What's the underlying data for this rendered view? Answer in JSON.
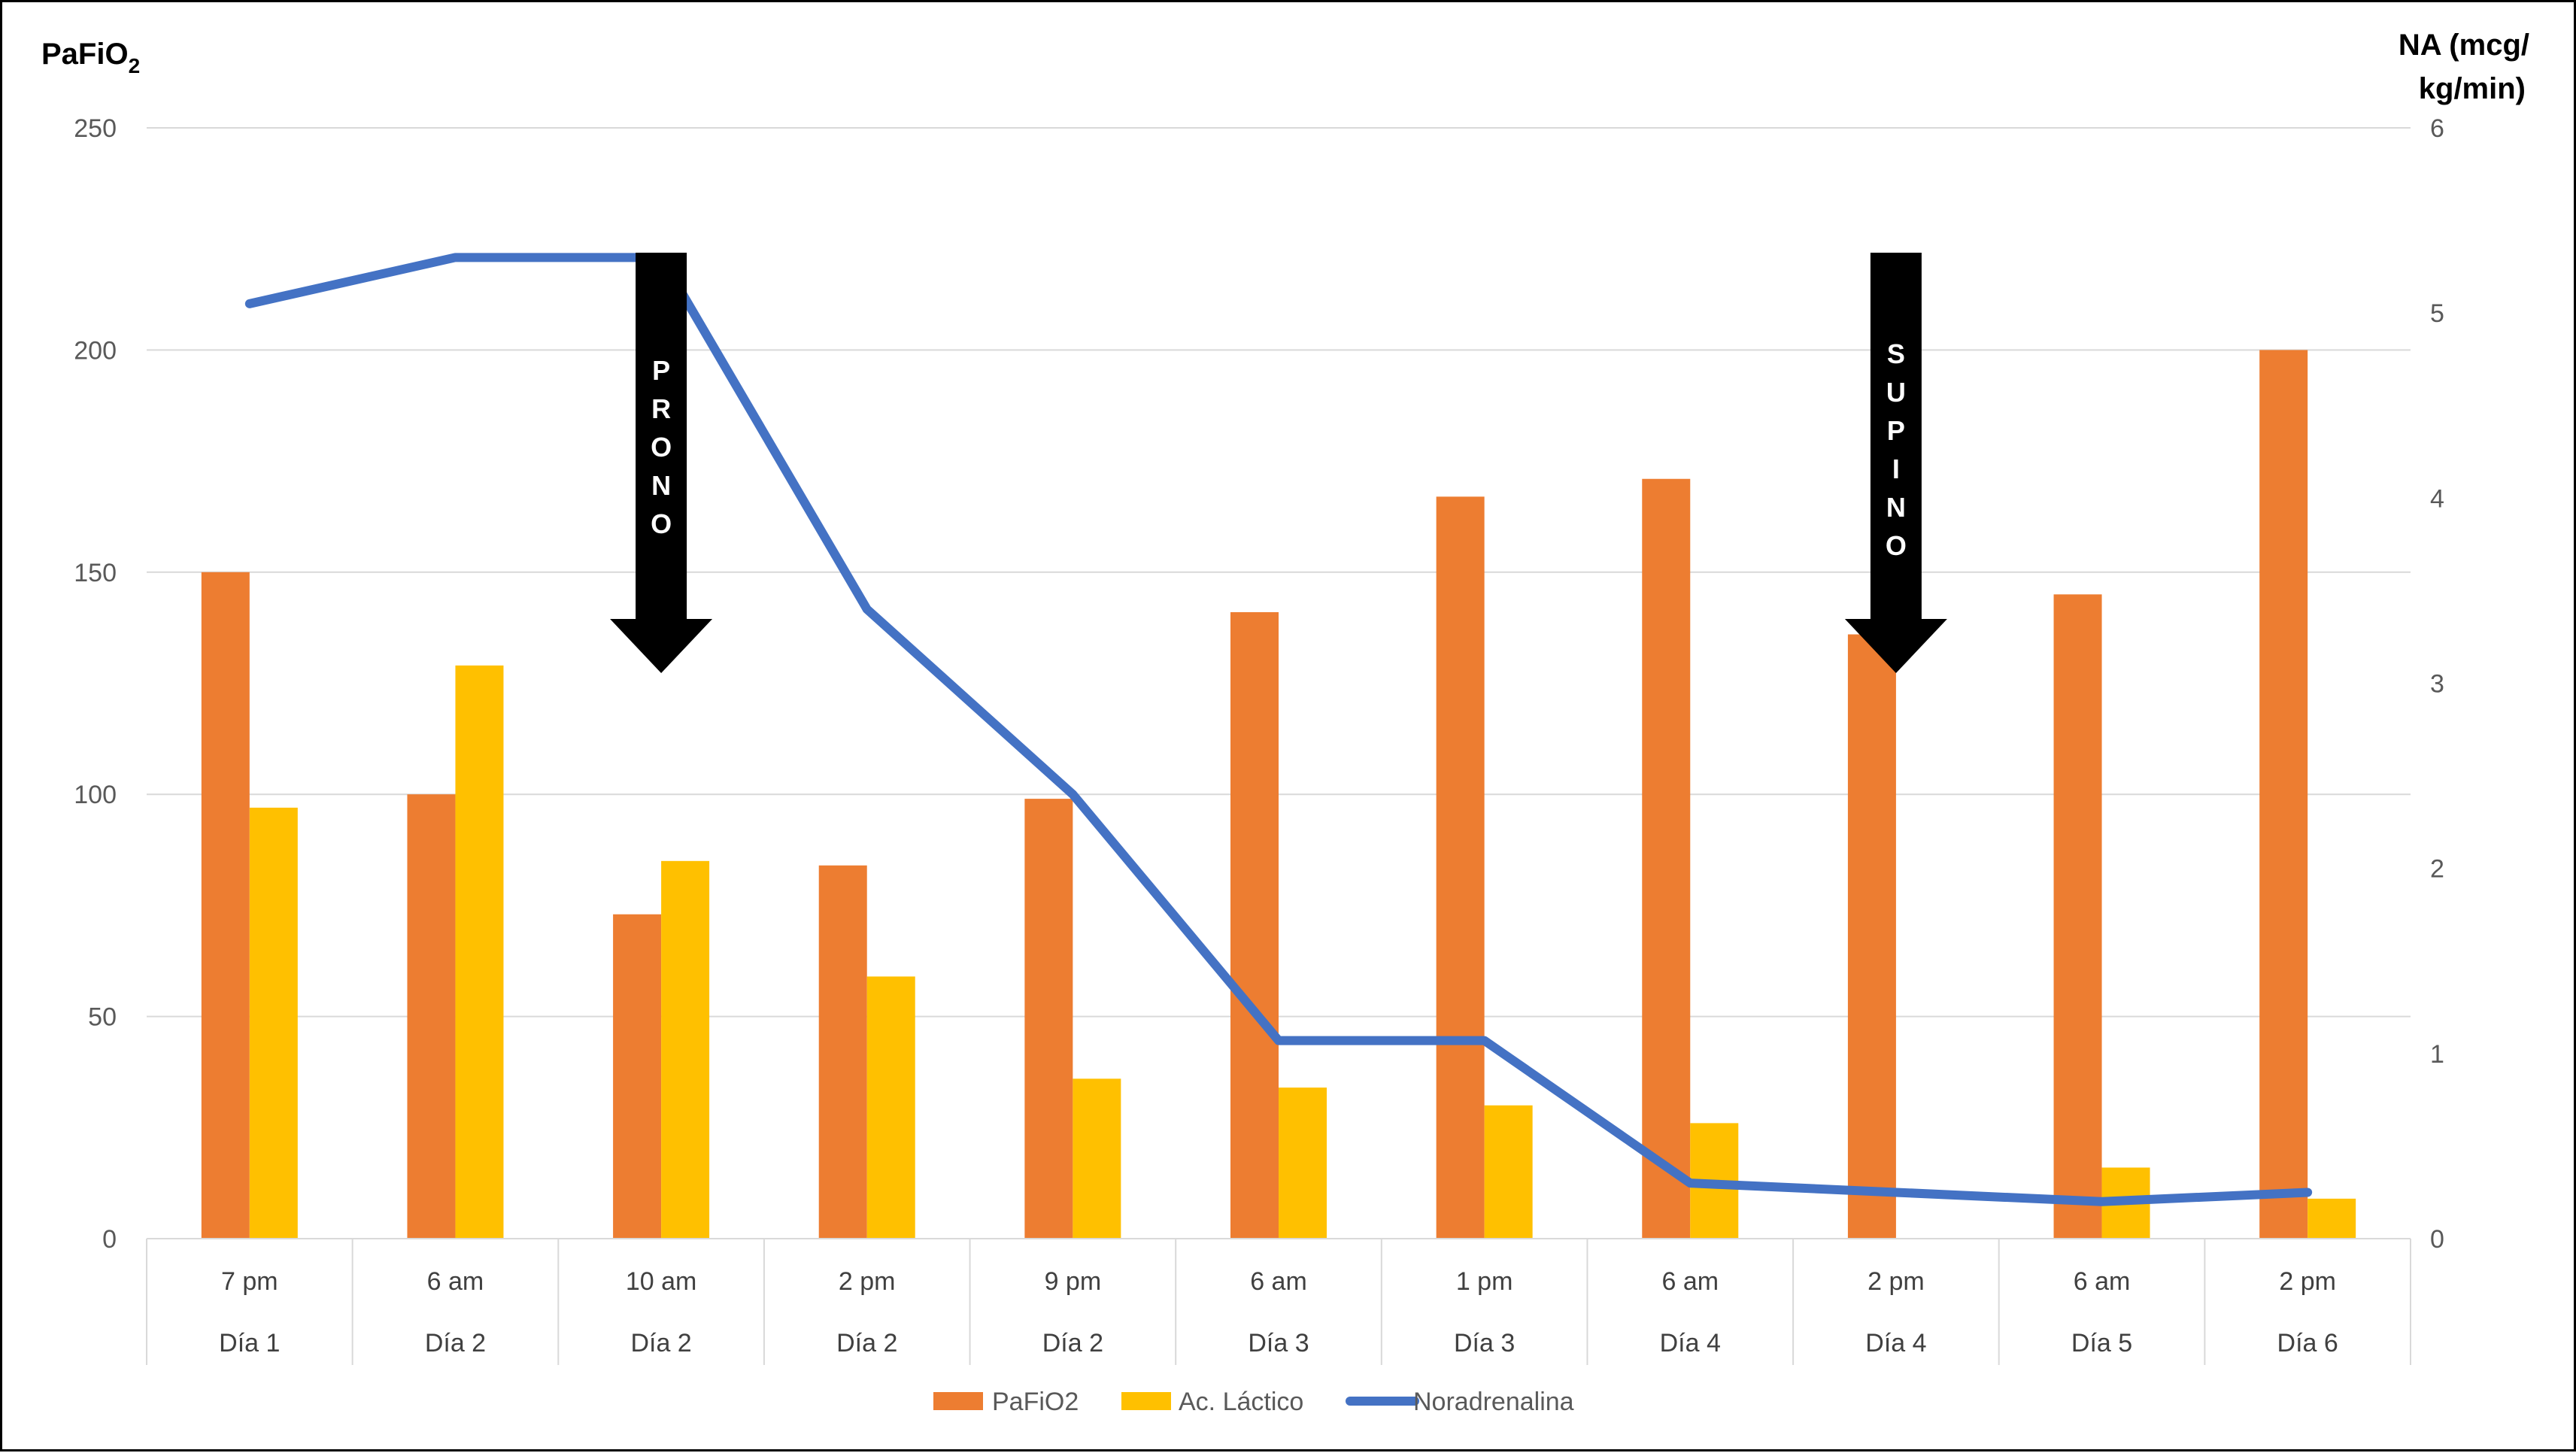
{
  "chart_data": {
    "type": "bar",
    "categories": [
      {
        "time": "7 pm",
        "day": "Día 1"
      },
      {
        "time": "6 am",
        "day": "Día 2"
      },
      {
        "time": "10 am",
        "day": "Día 2"
      },
      {
        "time": "2 pm",
        "day": "Día 2"
      },
      {
        "time": "9 pm",
        "day": "Día 2"
      },
      {
        "time": "6 am",
        "day": "Día 3"
      },
      {
        "time": "1 pm",
        "day": "Día 3"
      },
      {
        "time": "6 am",
        "day": "Día 4"
      },
      {
        "time": "2 pm",
        "day": "Día 4"
      },
      {
        "time": "6 am",
        "day": "Día 5"
      },
      {
        "time": "2 pm",
        "day": "Día 6"
      }
    ],
    "series": [
      {
        "name": "PaFiO2",
        "type": "bar",
        "axis": "left",
        "color": "#ED7D31",
        "values": [
          150,
          100,
          73,
          84,
          99,
          141,
          167,
          171,
          136,
          145,
          200
        ]
      },
      {
        "name": "Ac. Láctico",
        "type": "bar",
        "axis": "left",
        "color": "#FFC000",
        "values": [
          97,
          129,
          85,
          59,
          36,
          34,
          30,
          26,
          null,
          16,
          9
        ]
      },
      {
        "name": "Noradrenalina",
        "type": "line",
        "axis": "right",
        "color": "#4472C4",
        "values": [
          5.05,
          5.3,
          5.3,
          3.4,
          2.4,
          1.07,
          1.07,
          0.3,
          0.25,
          0.2,
          0.25
        ]
      }
    ],
    "y_left": {
      "title_main": "PaFiO",
      "title_sub": "2",
      "min": 0,
      "max": 250,
      "ticks": [
        0,
        50,
        100,
        150,
        200,
        250
      ]
    },
    "y_right": {
      "title_line1": "NA (mcg/",
      "title_line2": "kg/min)",
      "min": 0,
      "max": 6,
      "ticks": [
        0,
        1,
        2,
        3,
        4,
        5,
        6
      ]
    },
    "annotations": [
      {
        "text": "PRONO",
        "category_index": 2
      },
      {
        "text": "SUPINO",
        "category_index": 8
      }
    ],
    "legend_position": "bottom",
    "grid": true
  }
}
